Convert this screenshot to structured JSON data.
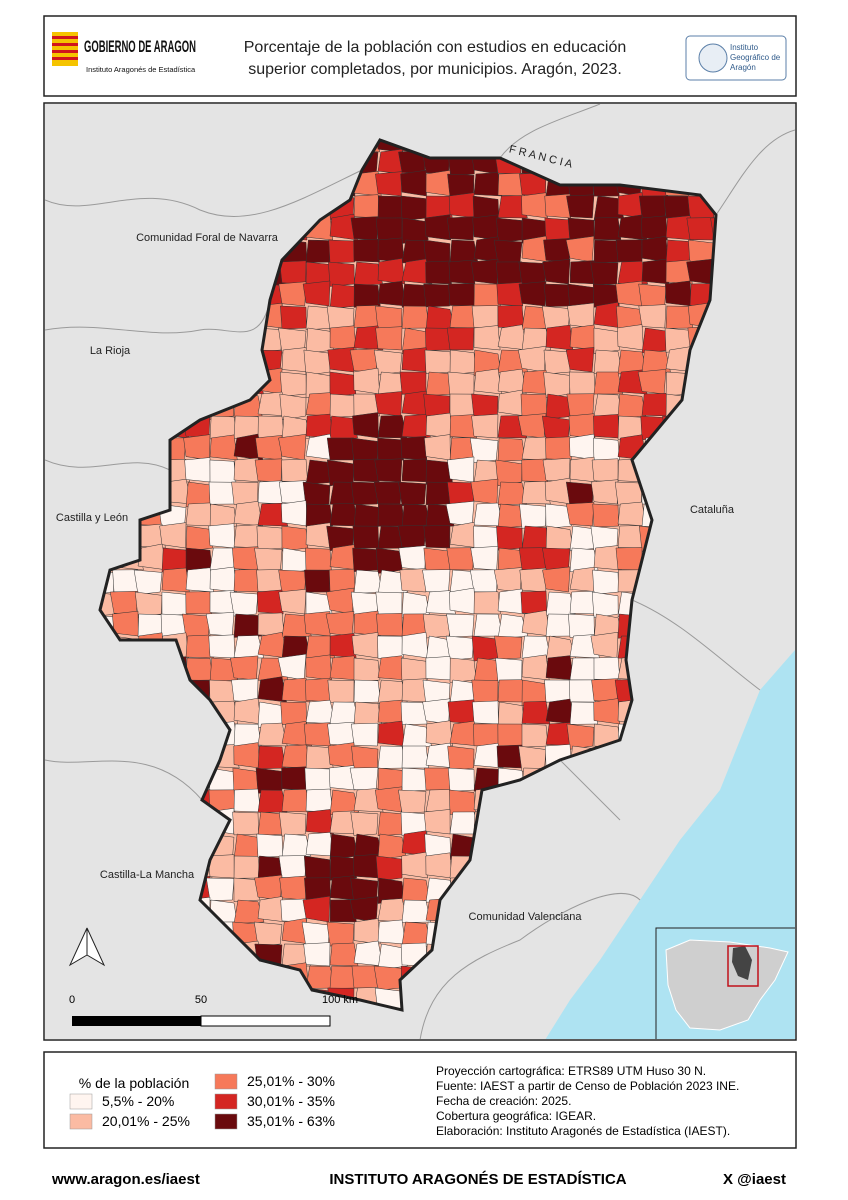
{
  "header": {
    "logo_main": "GOBIERNO DE ARAGON",
    "logo_sub": "Instituto Aragonés de Estadística",
    "title_lines": [
      "Porcentaje de la población con estudios en educación",
      "superior completados, por municipios. Aragón, 2023."
    ],
    "igear_lines": [
      "Instituto",
      "Geográfico de",
      "Aragón"
    ]
  },
  "map": {
    "regions": {
      "navarra": "Comunidad Foral de Navarra",
      "rioja": "La Rioja",
      "castilla_leon": "Castilla y León",
      "castilla_mancha": "Castilla-La Mancha",
      "valenciana": "Comunidad Valenciana",
      "cataluna": "Cataluña",
      "francia": "F R A N C I A"
    },
    "scale_labels": [
      "0",
      "50",
      "100 km"
    ]
  },
  "legend": {
    "title": "% de la población",
    "classes": [
      {
        "label": "5,5% - 20%",
        "color": "#fff5f0"
      },
      {
        "label": "20,01% - 25%",
        "color": "#fbbba3"
      },
      {
        "label": "25,01% - 30%",
        "color": "#f6795a"
      },
      {
        "label": "30,01% - 35%",
        "color": "#d42622"
      },
      {
        "label": "35,01% - 63%",
        "color": "#6a0a0d"
      }
    ]
  },
  "notes": [
    "Proyección cartográfica: ETRS89 UTM Huso 30 N.",
    "Fuente: IAEST a partir de Censo de Población 2023 INE.",
    "Fecha de creación: 2025.",
    "Cobertura geográfica: IGEAR.",
    "Elaboración: Instituto Aragonés de Estadística (IAEST)."
  ],
  "footer": {
    "left": "www.aragon.es/iaest",
    "center": "INSTITUTO ARAGONÉS DE ESTADÍSTICA",
    "right": "X @iaest"
  }
}
